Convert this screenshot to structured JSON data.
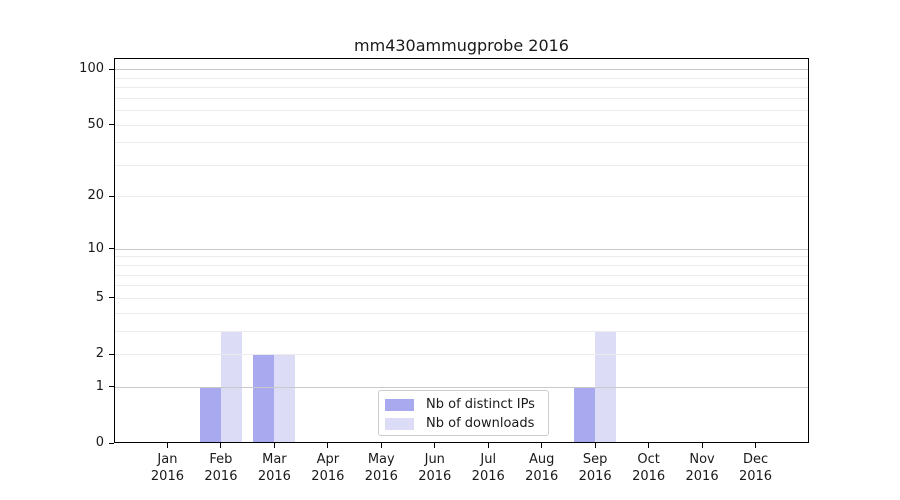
{
  "chart_data": {
    "type": "bar",
    "title": "mm430ammugprobe 2016",
    "year": "2016",
    "categories": [
      "Jan",
      "Feb",
      "Mar",
      "Apr",
      "May",
      "Jun",
      "Jul",
      "Aug",
      "Sep",
      "Oct",
      "Nov",
      "Dec"
    ],
    "series": [
      {
        "name": "Nb of distinct IPs",
        "color": "#a9a9f0",
        "values": [
          0,
          1,
          2,
          0,
          0,
          0,
          0,
          0,
          1,
          0,
          0,
          0
        ]
      },
      {
        "name": "Nb of downloads",
        "color": "#dcdcf7",
        "values": [
          0,
          3,
          2,
          0,
          0,
          0,
          0,
          0,
          3,
          0,
          0,
          0
        ]
      }
    ],
    "yscale": "log1p",
    "ylim": [
      0,
      115
    ],
    "y_labeled_ticks": [
      0,
      1,
      2,
      5,
      10,
      20,
      50,
      100
    ],
    "y_major_gridlines": [
      1,
      10,
      100
    ],
    "y_minor_gridlines": [
      2,
      3,
      4,
      5,
      6,
      7,
      8,
      9,
      20,
      30,
      40,
      50,
      60,
      70,
      80,
      90
    ],
    "grid": true,
    "legend_position": "bottom-center"
  },
  "colors": {
    "distinct_ips": "#a9a9f0",
    "downloads": "#dcdcf7",
    "grid_major": "#c9c9c9",
    "grid_minor": "#ebebeb",
    "axis": "#000000",
    "text": "#1a1a1a",
    "legend_border": "#cccccc"
  }
}
